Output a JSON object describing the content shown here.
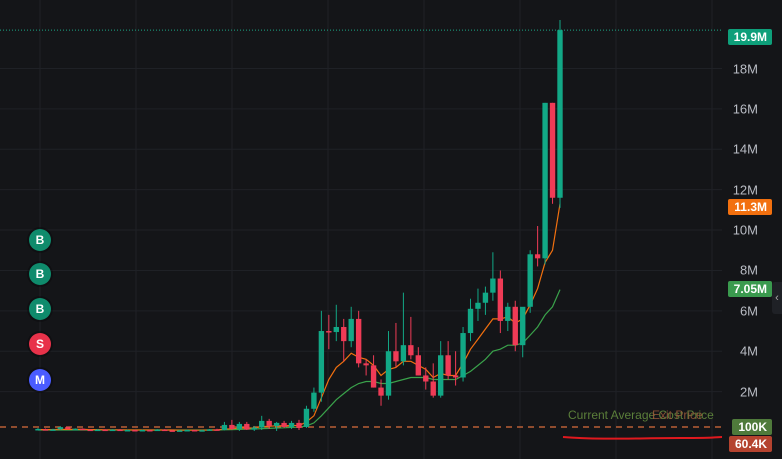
{
  "chart_data": {
    "type": "candlestick",
    "y_axis": {
      "ticks": [
        "2M",
        "4M",
        "6M",
        "8M",
        "10M",
        "12M",
        "14M",
        "16M",
        "18M"
      ],
      "tick_values": [
        2000000,
        4000000,
        6000000,
        8000000,
        10000000,
        12000000,
        14000000,
        16000000,
        18000000
      ],
      "ylim": [
        0,
        20600000
      ],
      "grid": true
    },
    "price_tags": [
      {
        "label": "19.9M",
        "value": 19900000,
        "color": "#0e9f7a"
      },
      {
        "label": "11.3M",
        "value": 11300000,
        "color": "#f2700f"
      },
      {
        "label": "7.05M",
        "value": 7050000,
        "color": "#3a9a4e"
      },
      {
        "label": "100K",
        "value": 100000,
        "color": "#4f7a3b"
      },
      {
        "label": "60.4K",
        "value": 60400,
        "color": "#b5432f"
      }
    ],
    "candles": [
      {
        "o": 0.12,
        "h": 0.2,
        "l": 0.1,
        "c": 0.15
      },
      {
        "o": 0.14,
        "h": 0.17,
        "l": 0.1,
        "c": 0.12
      },
      {
        "o": 0.12,
        "h": 0.16,
        "l": 0.08,
        "c": 0.13
      },
      {
        "o": 0.13,
        "h": 0.28,
        "l": 0.1,
        "c": 0.24
      },
      {
        "o": 0.24,
        "h": 0.26,
        "l": 0.12,
        "c": 0.14
      },
      {
        "o": 0.14,
        "h": 0.18,
        "l": 0.1,
        "c": 0.16
      },
      {
        "o": 0.16,
        "h": 0.18,
        "l": 0.1,
        "c": 0.12
      },
      {
        "o": 0.12,
        "h": 0.15,
        "l": 0.08,
        "c": 0.1
      },
      {
        "o": 0.1,
        "h": 0.15,
        "l": 0.06,
        "c": 0.12
      },
      {
        "o": 0.12,
        "h": 0.14,
        "l": 0.05,
        "c": 0.07
      },
      {
        "o": 0.07,
        "h": 0.14,
        "l": 0.05,
        "c": 0.12
      },
      {
        "o": 0.12,
        "h": 0.14,
        "l": 0.06,
        "c": 0.08
      },
      {
        "o": 0.08,
        "h": 0.12,
        "l": 0.05,
        "c": 0.1
      },
      {
        "o": 0.1,
        "h": 0.12,
        "l": 0.04,
        "c": 0.06
      },
      {
        "o": 0.06,
        "h": 0.12,
        "l": 0.04,
        "c": 0.1
      },
      {
        "o": 0.1,
        "h": 0.12,
        "l": 0.05,
        "c": 0.08
      },
      {
        "o": 0.08,
        "h": 0.14,
        "l": 0.06,
        "c": 0.12
      },
      {
        "o": 0.12,
        "h": 0.14,
        "l": 0.06,
        "c": 0.08
      },
      {
        "o": 0.08,
        "h": 0.12,
        "l": 0.05,
        "c": 0.06
      },
      {
        "o": 0.06,
        "h": 0.1,
        "l": 0.04,
        "c": 0.08
      },
      {
        "o": 0.08,
        "h": 0.12,
        "l": 0.05,
        "c": 0.1
      },
      {
        "o": 0.1,
        "h": 0.11,
        "l": 0.04,
        "c": 0.07
      },
      {
        "o": 0.07,
        "h": 0.11,
        "l": 0.04,
        "c": 0.09
      },
      {
        "o": 0.09,
        "h": 0.14,
        "l": 0.06,
        "c": 0.13
      },
      {
        "o": 0.13,
        "h": 0.16,
        "l": 0.08,
        "c": 0.1
      },
      {
        "o": 0.1,
        "h": 0.5,
        "l": 0.08,
        "c": 0.35
      },
      {
        "o": 0.35,
        "h": 0.6,
        "l": 0.1,
        "c": 0.15
      },
      {
        "o": 0.15,
        "h": 0.5,
        "l": 0.05,
        "c": 0.4
      },
      {
        "o": 0.4,
        "h": 0.5,
        "l": 0.1,
        "c": 0.12
      },
      {
        "o": 0.12,
        "h": 0.3,
        "l": 0.05,
        "c": 0.22
      },
      {
        "o": 0.22,
        "h": 0.8,
        "l": 0.1,
        "c": 0.55
      },
      {
        "o": 0.55,
        "h": 0.65,
        "l": 0.15,
        "c": 0.3
      },
      {
        "o": 0.3,
        "h": 0.5,
        "l": 0.05,
        "c": 0.45
      },
      {
        "o": 0.45,
        "h": 0.55,
        "l": 0.2,
        "c": 0.25
      },
      {
        "o": 0.25,
        "h": 0.55,
        "l": 0.15,
        "c": 0.45
      },
      {
        "o": 0.45,
        "h": 0.6,
        "l": 0.1,
        "c": 0.2
      },
      {
        "o": 0.25,
        "h": 1.3,
        "l": 0.2,
        "c": 1.15
      },
      {
        "o": 1.15,
        "h": 2.2,
        "l": 1.0,
        "c": 1.95
      },
      {
        "o": 1.95,
        "h": 6.0,
        "l": 1.5,
        "c": 5.0
      },
      {
        "o": 5.0,
        "h": 5.8,
        "l": 4.1,
        "c": 4.95
      },
      {
        "o": 4.95,
        "h": 6.3,
        "l": 4.5,
        "c": 5.2
      },
      {
        "o": 5.2,
        "h": 5.6,
        "l": 3.5,
        "c": 4.5
      },
      {
        "o": 4.5,
        "h": 6.2,
        "l": 4.2,
        "c": 5.6
      },
      {
        "o": 5.6,
        "h": 6.0,
        "l": 3.2,
        "c": 3.4
      },
      {
        "o": 3.4,
        "h": 3.6,
        "l": 2.8,
        "c": 3.3
      },
      {
        "o": 3.3,
        "h": 3.8,
        "l": 2.2,
        "c": 2.2
      },
      {
        "o": 2.2,
        "h": 2.6,
        "l": 1.3,
        "c": 1.8
      },
      {
        "o": 1.8,
        "h": 5.0,
        "l": 1.6,
        "c": 4.0
      },
      {
        "o": 4.0,
        "h": 5.4,
        "l": 3.2,
        "c": 3.5
      },
      {
        "o": 3.5,
        "h": 6.9,
        "l": 3.3,
        "c": 4.3
      },
      {
        "o": 4.3,
        "h": 5.7,
        "l": 3.6,
        "c": 3.8
      },
      {
        "o": 3.8,
        "h": 4.2,
        "l": 2.8,
        "c": 2.8
      },
      {
        "o": 2.8,
        "h": 3.2,
        "l": 2.1,
        "c": 2.5
      },
      {
        "o": 2.5,
        "h": 3.4,
        "l": 1.7,
        "c": 1.8
      },
      {
        "o": 1.8,
        "h": 4.5,
        "l": 1.7,
        "c": 3.8
      },
      {
        "o": 3.8,
        "h": 4.5,
        "l": 2.6,
        "c": 2.8
      },
      {
        "o": 2.8,
        "h": 4.0,
        "l": 2.3,
        "c": 2.7
      },
      {
        "o": 2.7,
        "h": 5.2,
        "l": 2.5,
        "c": 4.9
      },
      {
        "o": 4.9,
        "h": 6.6,
        "l": 4.5,
        "c": 6.1
      },
      {
        "o": 6.1,
        "h": 7.1,
        "l": 5.5,
        "c": 6.4
      },
      {
        "o": 6.4,
        "h": 7.2,
        "l": 5.8,
        "c": 6.9
      },
      {
        "o": 6.9,
        "h": 8.9,
        "l": 6.5,
        "c": 7.6
      },
      {
        "o": 7.6,
        "h": 8.0,
        "l": 4.9,
        "c": 5.5
      },
      {
        "o": 5.5,
        "h": 6.4,
        "l": 5.0,
        "c": 6.2
      },
      {
        "o": 6.2,
        "h": 6.5,
        "l": 4.0,
        "c": 4.3
      },
      {
        "o": 4.3,
        "h": 5.8,
        "l": 3.7,
        "c": 6.2
      },
      {
        "o": 6.2,
        "h": 9.0,
        "l": 5.9,
        "c": 8.8
      },
      {
        "o": 8.8,
        "h": 10.2,
        "l": 8.2,
        "c": 8.6
      },
      {
        "o": 8.6,
        "h": 16.3,
        "l": 8.3,
        "c": 16.3
      },
      {
        "o": 16.3,
        "h": 16.3,
        "l": 11.3,
        "c": 11.6
      },
      {
        "o": 11.6,
        "h": 20.4,
        "l": 11.1,
        "c": 19.9
      }
    ],
    "ma_fast": [
      0.12,
      0.12,
      0.12,
      0.13,
      0.13,
      0.13,
      0.13,
      0.12,
      0.12,
      0.11,
      0.11,
      0.11,
      0.1,
      0.1,
      0.1,
      0.1,
      0.1,
      0.1,
      0.1,
      0.09,
      0.09,
      0.09,
      0.09,
      0.1,
      0.1,
      0.15,
      0.16,
      0.2,
      0.2,
      0.2,
      0.27,
      0.28,
      0.31,
      0.3,
      0.33,
      0.31,
      0.5,
      0.8,
      1.7,
      2.6,
      3.2,
      3.5,
      3.9,
      3.7,
      3.6,
      3.3,
      2.8,
      3.1,
      3.2,
      3.5,
      3.5,
      3.3,
      3.1,
      2.7,
      2.9,
      2.8,
      2.8,
      3.4,
      4.1,
      4.6,
      5.1,
      5.6,
      5.6,
      5.7,
      5.4,
      5.6,
      6.3,
      7.1,
      8.4,
      9.0,
      11.3
    ],
    "ma_slow": [
      0.1,
      0.1,
      0.1,
      0.1,
      0.1,
      0.1,
      0.1,
      0.1,
      0.1,
      0.1,
      0.1,
      0.1,
      0.1,
      0.1,
      0.1,
      0.1,
      0.1,
      0.1,
      0.1,
      0.1,
      0.1,
      0.1,
      0.1,
      0.1,
      0.1,
      0.11,
      0.12,
      0.13,
      0.14,
      0.15,
      0.17,
      0.18,
      0.2,
      0.21,
      0.23,
      0.24,
      0.3,
      0.45,
      0.8,
      1.2,
      1.6,
      1.9,
      2.2,
      2.4,
      2.5,
      2.5,
      2.4,
      2.4,
      2.5,
      2.6,
      2.7,
      2.7,
      2.7,
      2.6,
      2.6,
      2.6,
      2.6,
      2.8,
      3.0,
      3.3,
      3.6,
      4.0,
      4.1,
      4.3,
      4.3,
      4.4,
      4.8,
      5.2,
      5.8,
      6.2,
      7.05
    ]
  },
  "trade_markers": [
    {
      "letter": "B",
      "name": "buy-marker",
      "color": "#0f8b6c"
    },
    {
      "letter": "B",
      "name": "buy-marker",
      "color": "#0f8b6c"
    },
    {
      "letter": "B",
      "name": "buy-marker",
      "color": "#0f8b6c"
    },
    {
      "letter": "S",
      "name": "sell-marker",
      "color": "#e8324a"
    },
    {
      "letter": "M",
      "name": "migration-marker",
      "color": "#4a5cff"
    }
  ],
  "overlay_labels": {
    "current_average_cost_price": "Current Average Cost Price",
    "exit_price": "Exit Price"
  },
  "colors": {
    "up": "#12a886",
    "down": "#ef3b56",
    "ma_fast": "#f2700f",
    "ma_slow": "#3aa24b",
    "cost_line": "#d96e3c",
    "red_line": "#e0191e",
    "grid": "#1f2126"
  }
}
